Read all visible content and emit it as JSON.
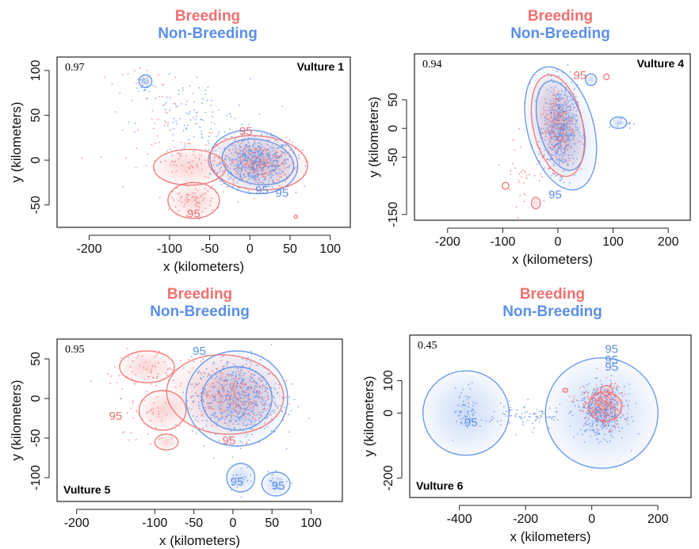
{
  "colors": {
    "breeding": "#f07070",
    "non_breeding": "#5b8fe8",
    "breeding_fill": "#f4b0b0",
    "non_breeding_fill": "#9fbcf0"
  },
  "chart_data": [
    {
      "type": "scatter",
      "title_lines": [
        "Breeding",
        "Non-Breeding"
      ],
      "panel_label": "Vulture 1",
      "value_label": "0.97",
      "xlabel": "x (kilometers)",
      "ylabel": "y (kilometers)",
      "xlim": [
        -240,
        125
      ],
      "ylim": [
        -75,
        115
      ],
      "xticks": [
        -200,
        -100,
        -50,
        0,
        50,
        100
      ],
      "xtick_labels": [
        "-200",
        "-100",
        "-50",
        "0",
        "50",
        "100"
      ],
      "yticks": [
        -50,
        0,
        50,
        100
      ],
      "ytick_labels": [
        "-50",
        "0",
        "50",
        "100"
      ],
      "contour_labels": [
        {
          "text": "95",
          "series": "Breeding",
          "x": -5,
          "y": 28
        },
        {
          "text": "95",
          "series": "Non-Breeding",
          "x": 15,
          "y": -38
        },
        {
          "text": "95",
          "series": "Non-Breeding",
          "x": 40,
          "y": -41
        },
        {
          "text": "95",
          "series": "Breeding",
          "x": -70,
          "y": -64
        }
      ],
      "series": [
        {
          "name": "Breeding",
          "contours": [
            {
              "cx": 10,
              "cy": -3,
              "rx": 62,
              "ry": 30,
              "rot": -5
            },
            {
              "cx": -75,
              "cy": -8,
              "rx": 45,
              "ry": 20,
              "rot": 0
            },
            {
              "cx": -70,
              "cy": -45,
              "rx": 32,
              "ry": 20,
              "rot": 0
            },
            {
              "cx": 57,
              "cy": -63,
              "rx": 2,
              "ry": 2,
              "rot": 0
            }
          ],
          "clusters": [
            {
              "cx": 10,
              "cy": -3,
              "sx": 25,
              "sy": 14,
              "n": 260
            },
            {
              "cx": -70,
              "cy": -45,
              "sx": 14,
              "sy": 8,
              "n": 70
            },
            {
              "cx": -80,
              "cy": 0,
              "sx": 22,
              "sy": 12,
              "n": 60
            },
            {
              "cx": -110,
              "cy": 55,
              "sx": 35,
              "sy": 30,
              "n": 60
            }
          ]
        },
        {
          "name": "Non-Breeding",
          "contours": [
            {
              "cx": 5,
              "cy": -2,
              "rx": 55,
              "ry": 35,
              "rot": -10
            },
            {
              "cx": 10,
              "cy": -2,
              "rx": 45,
              "ry": 25,
              "rot": -10
            },
            {
              "cx": -130,
              "cy": 88,
              "rx": 8,
              "ry": 7,
              "rot": 0
            }
          ],
          "clusters": [
            {
              "cx": 8,
              "cy": -3,
              "sx": 22,
              "sy": 13,
              "n": 520
            },
            {
              "cx": -70,
              "cy": 40,
              "sx": 35,
              "sy": 25,
              "n": 110
            },
            {
              "cx": -130,
              "cy": 85,
              "sx": 6,
              "sy": 5,
              "n": 25
            }
          ]
        }
      ]
    },
    {
      "type": "scatter",
      "title_lines": [
        "Breeding",
        "Non-Breeding"
      ],
      "panel_label": "Vulture 4",
      "value_label": "0.94",
      "xlabel": "x (kilometers)",
      "ylabel": "y (kilometers)",
      "xlim": [
        -260,
        240
      ],
      "ylim": [
        -160,
        130
      ],
      "xticks": [
        -200,
        -100,
        0,
        100,
        200
      ],
      "xtick_labels": [
        "-200",
        "-100",
        "0",
        "100",
        "200"
      ],
      "yticks": [
        -150,
        -50,
        0,
        50
      ],
      "ytick_labels": [
        "-150",
        "-50",
        "0",
        "50"
      ],
      "contour_labels": [
        {
          "text": "95",
          "series": "Breeding",
          "x": 40,
          "y": 86
        },
        {
          "text": "95",
          "series": "Non-Breeding",
          "x": -5,
          "y": -122
        }
      ],
      "series": [
        {
          "name": "Breeding",
          "contours": [
            {
              "cx": 0,
              "cy": 5,
              "rx": 45,
              "ry": 90,
              "rot": 12
            },
            {
              "cx": 88,
              "cy": 90,
              "rx": 5,
              "ry": 5,
              "rot": 0
            },
            {
              "cx": -95,
              "cy": -100,
              "rx": 6,
              "ry": 6,
              "rot": 0
            },
            {
              "cx": -40,
              "cy": -130,
              "rx": 8,
              "ry": 10,
              "rot": 0
            }
          ],
          "clusters": [
            {
              "cx": 0,
              "cy": 5,
              "sx": 15,
              "sy": 35,
              "n": 220
            },
            {
              "cx": -60,
              "cy": -75,
              "sx": 20,
              "sy": 30,
              "n": 40
            }
          ]
        },
        {
          "name": "Non-Breeding",
          "contours": [
            {
              "cx": 5,
              "cy": 0,
              "rx": 60,
              "ry": 110,
              "rot": 15
            },
            {
              "cx": 5,
              "cy": 5,
              "rx": 40,
              "ry": 80,
              "rot": 15
            },
            {
              "cx": 110,
              "cy": 10,
              "rx": 15,
              "ry": 10,
              "rot": 0
            },
            {
              "cx": 60,
              "cy": 85,
              "rx": 10,
              "ry": 10,
              "rot": 0
            }
          ],
          "clusters": [
            {
              "cx": 5,
              "cy": 0,
              "sx": 15,
              "sy": 38,
              "n": 520
            },
            {
              "cx": 120,
              "cy": 10,
              "sx": 8,
              "sy": 5,
              "n": 12
            }
          ]
        }
      ]
    },
    {
      "type": "scatter",
      "title_lines": [
        "Breeding",
        "Non-Breeding"
      ],
      "panel_label": "Vulture 5",
      "value_label": "0.95",
      "xlabel": "x (kilometers)",
      "ylabel": "y (kilometers)",
      "xlim": [
        -225,
        140
      ],
      "ylim": [
        -130,
        75
      ],
      "xticks": [
        -200,
        -100,
        -50,
        0,
        50,
        100
      ],
      "xtick_labels": [
        "-200",
        "-100",
        "-50",
        "0",
        "50",
        "100"
      ],
      "yticks": [
        -100,
        -50,
        0,
        50
      ],
      "ytick_labels": [
        "-100",
        "-50",
        "0",
        "50"
      ],
      "contour_labels": [
        {
          "text": "95",
          "series": "Non-Breeding",
          "x": -43,
          "y": 55
        },
        {
          "text": "95",
          "series": "Breeding",
          "x": -150,
          "y": -27
        },
        {
          "text": "95",
          "series": "Breeding",
          "x": -5,
          "y": -58
        },
        {
          "text": "95",
          "series": "Non-Breeding",
          "x": 5,
          "y": -110
        },
        {
          "text": "95",
          "series": "Non-Breeding",
          "x": 58,
          "y": -115
        }
      ],
      "series": [
        {
          "name": "Breeding",
          "contours": [
            {
              "cx": -10,
              "cy": 5,
              "rx": 75,
              "ry": 50,
              "rot": -5
            },
            {
              "cx": -110,
              "cy": 40,
              "rx": 35,
              "ry": 20,
              "rot": 0
            },
            {
              "cx": -90,
              "cy": -15,
              "rx": 30,
              "ry": 25,
              "rot": 0
            },
            {
              "cx": -85,
              "cy": -55,
              "rx": 15,
              "ry": 10,
              "rot": 0
            }
          ],
          "clusters": [
            {
              "cx": 0,
              "cy": 5,
              "sx": 28,
              "sy": 20,
              "n": 260
            },
            {
              "cx": -110,
              "cy": 35,
              "sx": 25,
              "sy": 15,
              "n": 60
            },
            {
              "cx": -100,
              "cy": -25,
              "sx": 20,
              "sy": 20,
              "n": 45
            }
          ]
        },
        {
          "name": "Non-Breeding",
          "contours": [
            {
              "cx": 5,
              "cy": 0,
              "rx": 65,
              "ry": 60,
              "rot": 0
            },
            {
              "cx": 5,
              "cy": 0,
              "rx": 45,
              "ry": 40,
              "rot": 0
            },
            {
              "cx": 10,
              "cy": -100,
              "rx": 18,
              "ry": 18,
              "rot": 0
            },
            {
              "cx": 55,
              "cy": -108,
              "rx": 18,
              "ry": 15,
              "rot": 0
            }
          ],
          "clusters": [
            {
              "cx": 5,
              "cy": 0,
              "sx": 28,
              "sy": 25,
              "n": 540
            },
            {
              "cx": 10,
              "cy": -100,
              "sx": 8,
              "sy": 8,
              "n": 20
            },
            {
              "cx": 55,
              "cy": -105,
              "sx": 8,
              "sy": 7,
              "n": 18
            }
          ]
        }
      ]
    },
    {
      "type": "scatter",
      "title_lines": [
        "Breeding",
        "Non-Breeding"
      ],
      "panel_label": "Vulture 6",
      "value_label": "0.45",
      "xlabel": "x (kilometers)",
      "ylabel": "y (kilometers)",
      "xlim": [
        -550,
        300
      ],
      "ylim": [
        -260,
        240
      ],
      "xticks": [
        -400,
        -200,
        0,
        200
      ],
      "xtick_labels": [
        "-400",
        "-200",
        "0",
        "200"
      ],
      "yticks": [
        -200,
        0,
        100
      ],
      "ytick_labels": [
        "-200",
        "0",
        "100"
      ],
      "contour_labels": [
        {
          "text": "95",
          "series": "Non-Breeding",
          "x": 60,
          "y": 185
        },
        {
          "text": "95",
          "series": "Non-Breeding",
          "x": 60,
          "y": 152
        },
        {
          "text": "95",
          "series": "Non-Breeding",
          "x": 60,
          "y": 130
        },
        {
          "text": "95",
          "series": "Non-Breeding",
          "x": -365,
          "y": -40
        }
      ],
      "series": [
        {
          "name": "Breeding",
          "contours": [
            {
              "cx": 40,
              "cy": 20,
              "rx": 50,
              "ry": 45,
              "rot": 0
            },
            {
              "cx": 45,
              "cy": 70,
              "rx": 18,
              "ry": 15,
              "rot": 0
            },
            {
              "cx": -80,
              "cy": 70,
              "rx": 8,
              "ry": 6,
              "rot": 0
            }
          ],
          "clusters": [
            {
              "cx": 40,
              "cy": 20,
              "sx": 28,
              "sy": 32,
              "n": 260
            },
            {
              "cx": -20,
              "cy": 40,
              "sx": 30,
              "sy": 20,
              "n": 30
            }
          ]
        },
        {
          "name": "Non-Breeding",
          "contours": [
            {
              "cx": -380,
              "cy": 0,
              "rx": 130,
              "ry": 130,
              "rot": 0
            },
            {
              "cx": 30,
              "cy": 0,
              "rx": 170,
              "ry": 170,
              "rot": 0
            }
          ],
          "clusters": [
            {
              "cx": 30,
              "cy": 5,
              "sx": 35,
              "sy": 40,
              "n": 420
            },
            {
              "cx": -380,
              "cy": 10,
              "sx": 18,
              "sy": 35,
              "n": 60
            },
            {
              "cx": -200,
              "cy": -10,
              "sx": 70,
              "sy": 20,
              "n": 90
            }
          ]
        }
      ]
    }
  ]
}
